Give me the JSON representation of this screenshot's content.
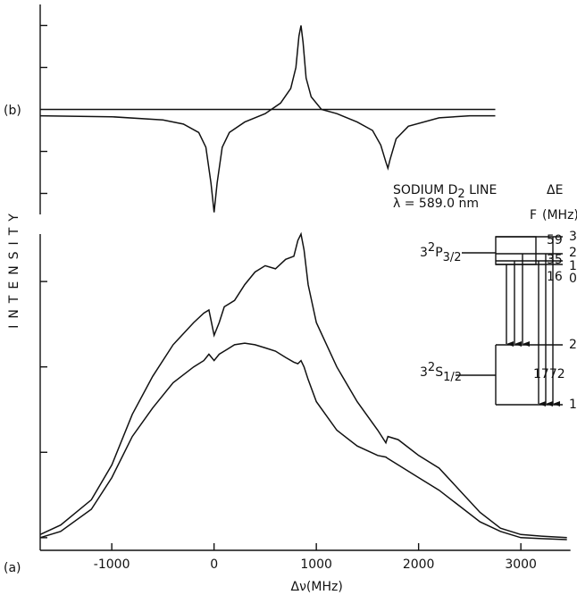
{
  "chart_data": [
    {
      "type": "line",
      "label": "(b)",
      "x": [
        -1700,
        -1000,
        -500,
        -300,
        -150,
        -80,
        -30,
        0,
        30,
        80,
        150,
        300,
        500,
        650,
        750,
        800,
        830,
        850,
        870,
        900,
        950,
        1050,
        1200,
        1400,
        1550,
        1630,
        1680,
        1700,
        1720,
        1780,
        1900,
        2200,
        2500,
        2750
      ],
      "series": [
        {
          "color": "#111",
          "values": [
            -3,
            -3.5,
            -5,
            -7,
            -11,
            -18,
            -35,
            -49,
            -35,
            -18,
            -11,
            -6,
            -2,
            3,
            10,
            20,
            35,
            40,
            32,
            15,
            6,
            0,
            -2,
            -6,
            -10,
            -17,
            -25,
            -28,
            -24,
            -14,
            -8,
            -4,
            -3,
            -3
          ]
        }
      ],
      "xlim": [
        -1700,
        2750
      ],
      "ylim": [
        -50,
        50
      ],
      "yticks": [
        -40,
        -20,
        20,
        40
      ]
    },
    {
      "type": "line",
      "label": "(a)",
      "ylabel": "INTENSITY",
      "xlabel": "Δν(MHz)",
      "x": [
        -1700,
        -1500,
        -1200,
        -1000,
        -800,
        -600,
        -400,
        -200,
        -100,
        -50,
        0,
        50,
        100,
        200,
        300,
        400,
        500,
        600,
        700,
        780,
        820,
        850,
        880,
        920,
        1000,
        1200,
        1400,
        1600,
        1680,
        1700,
        1800,
        2000,
        2200,
        2400,
        2600,
        2800,
        3000,
        3200,
        3450
      ],
      "series": [
        {
          "color": "#111",
          "values": [
            5,
            8,
            16,
            27,
            43,
            55,
            65,
            72,
            75,
            76,
            68,
            72,
            77,
            79,
            84,
            88,
            90,
            89,
            92,
            93,
            98,
            100,
            95,
            84,
            72,
            58,
            47,
            38,
            34,
            36,
            35,
            30,
            26,
            19,
            12,
            7,
            5,
            4.5,
            4
          ]
        },
        {
          "color": "#111",
          "values": [
            4,
            6,
            13,
            23,
            36,
            45,
            53,
            58,
            60,
            62,
            60,
            62,
            63,
            65,
            65.5,
            65,
            64,
            63,
            61,
            59.5,
            59,
            60,
            58,
            54,
            47,
            38,
            33,
            30,
            29.5,
            29,
            27,
            23,
            19,
            14,
            9,
            6,
            4,
            3.7,
            3.4
          ]
        }
      ],
      "xlim": [
        -1700,
        3450
      ],
      "ylim": [
        0,
        100
      ],
      "xticks": [
        -1000,
        0,
        1000,
        2000,
        3000
      ],
      "yticks": [
        4,
        31,
        58,
        85
      ]
    }
  ],
  "level_diagram": {
    "title": {
      "text": "SODIUM D",
      "sub": "2",
      "rest": " LINE"
    },
    "wavelength": "λ = 589.0 nm",
    "de_header": "ΔE",
    "f_header": "F",
    "unit_header": "(MHz)",
    "upper_state": {
      "n": "3",
      "sup": "2",
      "letter": "P",
      "sub": "3/2"
    },
    "lower_state": {
      "n": "3",
      "sup": "2",
      "letter": "S",
      "sub": "1/2"
    },
    "upper_f": [
      "3",
      "2",
      "1",
      "0"
    ],
    "upper_de": [
      "59",
      "35",
      "16"
    ],
    "lower_f": [
      "2",
      "1"
    ],
    "lower_de": "1772"
  }
}
